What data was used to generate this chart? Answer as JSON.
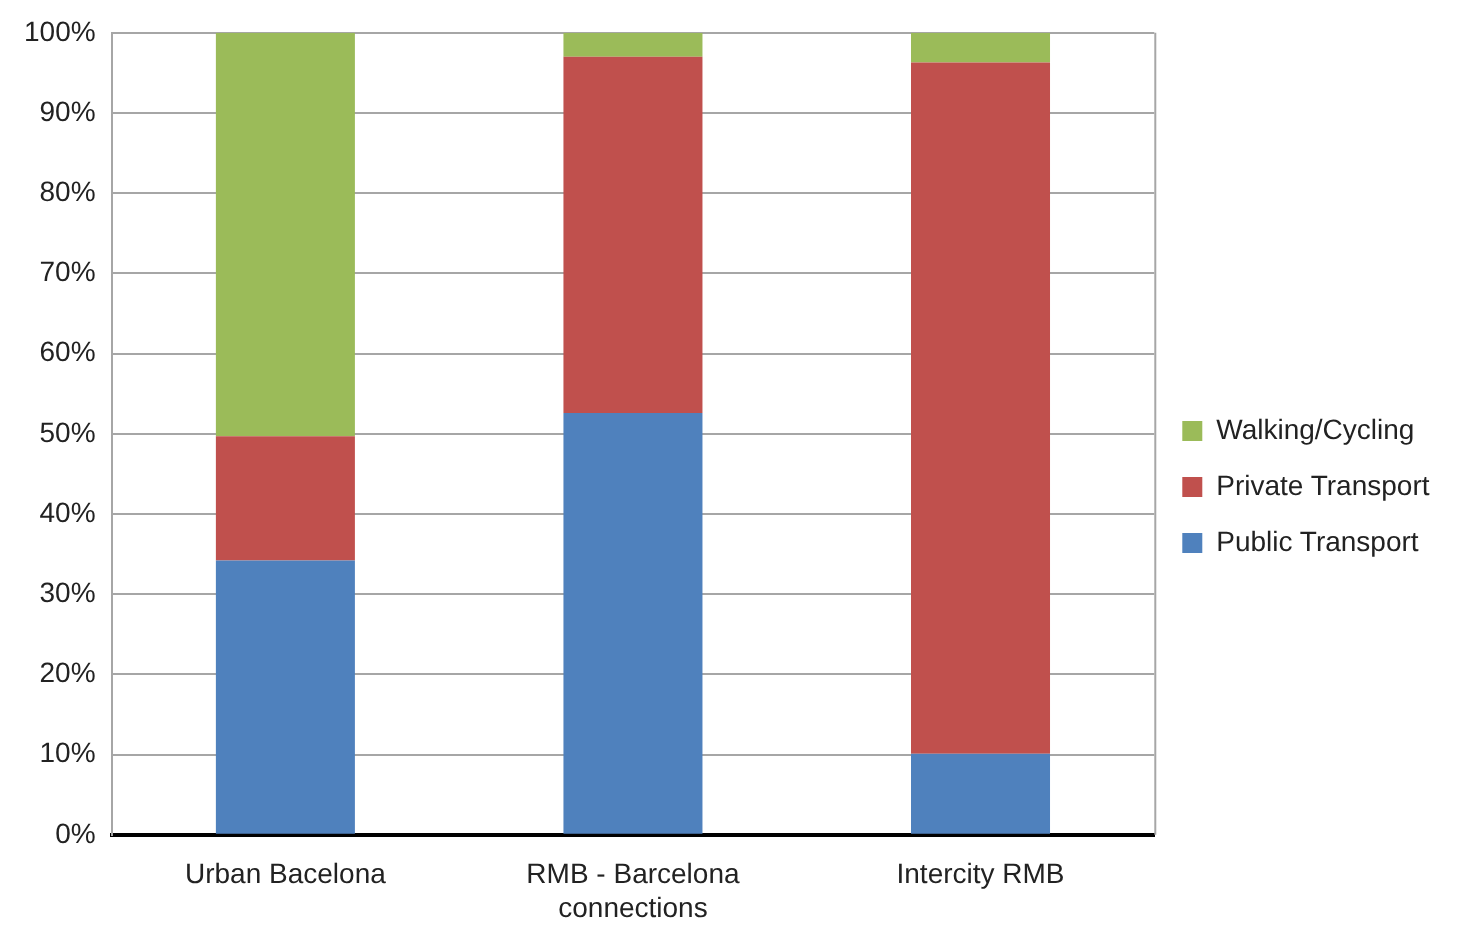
{
  "chart_data": {
    "type": "bar",
    "stacked": true,
    "categories": [
      "Urban Bacelona",
      "RMB - Barcelona connections",
      "Intercity RMB"
    ],
    "series": [
      {
        "name": "Public Transport",
        "color": "#4f81bd",
        "values": [
          34.2,
          52.6,
          10.1
        ]
      },
      {
        "name": "Private Transport",
        "color": "#c0504d",
        "values": [
          15.5,
          44.4,
          86.2
        ]
      },
      {
        "name": "Walking/Cycling",
        "color": "#9bbb59",
        "values": [
          50.3,
          3.0,
          3.7
        ]
      }
    ],
    "ylim": [
      0,
      100
    ],
    "yticks": [
      {
        "value": 0,
        "label": "0%"
      },
      {
        "value": 10,
        "label": "10%"
      },
      {
        "value": 20,
        "label": "20%"
      },
      {
        "value": 30,
        "label": "30%"
      },
      {
        "value": 40,
        "label": "40%"
      },
      {
        "value": 50,
        "label": "50%"
      },
      {
        "value": 60,
        "label": "60%"
      },
      {
        "value": 70,
        "label": "70%"
      },
      {
        "value": 80,
        "label": "80%"
      },
      {
        "value": 90,
        "label": "90%"
      },
      {
        "value": 100,
        "label": "100%"
      }
    ],
    "grid": "y",
    "legend": "right"
  }
}
